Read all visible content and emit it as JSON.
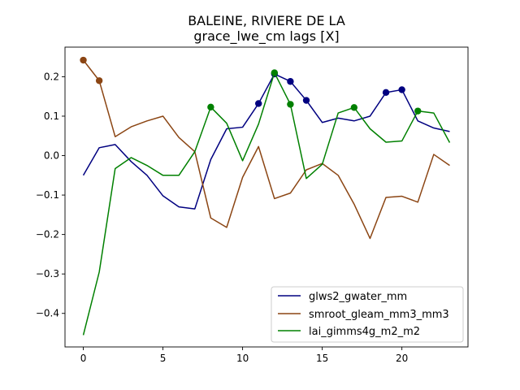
{
  "chart_data": {
    "type": "line",
    "title": "BALEINE, RIVIERE DE LA",
    "subtitle": "grace_lwe_cm lags [X]",
    "xlabel": "",
    "ylabel": "",
    "xlim": [
      -1.15,
      24.15
    ],
    "ylim": [
      -0.485,
      0.275
    ],
    "xticks": [
      0,
      5,
      10,
      15,
      20
    ],
    "xtick_labels": [
      "0",
      "5",
      "10",
      "15",
      "20"
    ],
    "yticks": [
      -0.4,
      -0.3,
      -0.2,
      -0.1,
      0.0,
      0.1,
      0.2
    ],
    "ytick_labels": [
      "−0.4",
      "−0.3",
      "−0.2",
      "−0.1",
      "0.0",
      "0.1",
      "0.2"
    ],
    "grid": false,
    "legend_position": "lower-right",
    "x": [
      0,
      1,
      2,
      3,
      4,
      5,
      6,
      7,
      8,
      9,
      10,
      11,
      12,
      13,
      14,
      15,
      16,
      17,
      18,
      19,
      20,
      21,
      22,
      23
    ],
    "series": [
      {
        "name": "glws2_gwater_mm",
        "color": "#000080",
        "values": [
          -0.05,
          0.02,
          0.028,
          -0.015,
          -0.05,
          -0.102,
          -0.13,
          -0.135,
          -0.01,
          0.068,
          0.072,
          0.132,
          0.207,
          0.188,
          0.14,
          0.084,
          0.095,
          0.088,
          0.1,
          0.16,
          0.167,
          0.088,
          0.07,
          0.061
        ],
        "markers": [
          11,
          12,
          13,
          14,
          19,
          20
        ]
      },
      {
        "name": "smroot_gleam_mm3_mm3",
        "color": "#8b4513",
        "values": [
          0.242,
          0.19,
          0.048,
          0.073,
          0.088,
          0.1,
          0.046,
          0.01,
          -0.158,
          -0.182,
          -0.055,
          0.023,
          -0.109,
          -0.095,
          -0.036,
          -0.02,
          -0.05,
          -0.123,
          -0.21,
          -0.106,
          -0.103,
          -0.118,
          0.003,
          -0.025
        ],
        "markers": [
          0,
          1
        ]
      },
      {
        "name": "lai_gimms4g_m2_m2",
        "color": "#008000",
        "values": [
          -0.455,
          -0.295,
          -0.033,
          -0.005,
          -0.025,
          -0.05,
          -0.05,
          0.01,
          0.123,
          0.082,
          -0.013,
          0.08,
          0.21,
          0.13,
          -0.058,
          -0.022,
          0.108,
          0.122,
          0.068,
          0.034,
          0.037,
          0.113,
          0.108,
          0.033
        ],
        "markers": [
          8,
          12,
          13,
          17,
          21
        ]
      }
    ]
  }
}
